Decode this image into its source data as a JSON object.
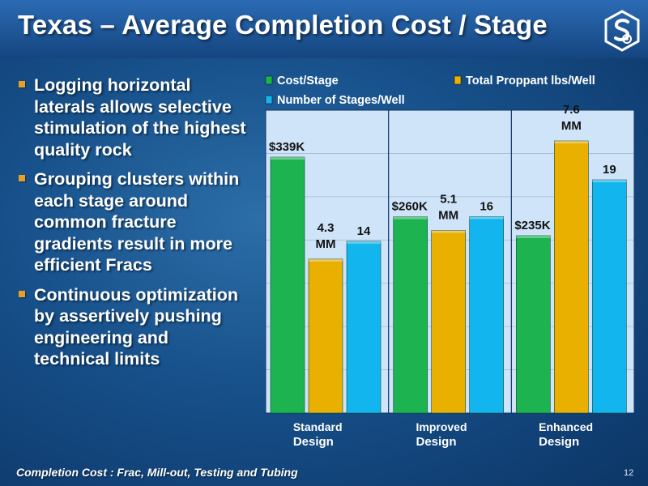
{
  "title": "Texas – Average Completion Cost / Stage",
  "bullets": [
    "Logging horizontal laterals allows selective stimulation of the highest quality rock",
    "Grouping clusters within each stage around common fracture gradients result in more efficient Fracs",
    "Continuous optimization by assertively pushing engineering and technical limits"
  ],
  "footnote": "Completion Cost : Frac, Mill-out, Testing and Tubing",
  "page_number": "12",
  "colors": {
    "accent": "#e8a020",
    "plot_bg": "#cfe4f8",
    "cost": "#1db351",
    "proppant": "#e9b000",
    "stages": "#12b5ee"
  },
  "logo_icon": "company-logo-icon",
  "chart_data": {
    "type": "bar",
    "categories": [
      [
        "Standard",
        "Design"
      ],
      [
        "Improved",
        "Design"
      ],
      [
        "Enhanced",
        "Design"
      ]
    ],
    "legend": [
      "Cost/Stage",
      "Total Proppant lbs/Well",
      "Number of Stages/Well"
    ],
    "series": [
      {
        "name": "Cost/Stage",
        "values": [
          339,
          260,
          235
        ],
        "labels": [
          "$339K",
          "$260K",
          "$235K"
        ],
        "color": "#1db351"
      },
      {
        "name": "Total Proppant lbs/Well",
        "values": [
          4.3,
          5.1,
          7.6
        ],
        "labels": [
          [
            "4.3",
            "MM"
          ],
          [
            "5.1",
            "MM"
          ],
          [
            "7.6",
            "MM"
          ]
        ],
        "color": "#e9b000"
      },
      {
        "name": "Number of Stages/Well",
        "values": [
          14,
          16,
          19
        ],
        "labels": [
          "14",
          "16",
          "19"
        ],
        "color": "#12b5ee"
      }
    ],
    "legend_position": "top",
    "grid": true
  }
}
